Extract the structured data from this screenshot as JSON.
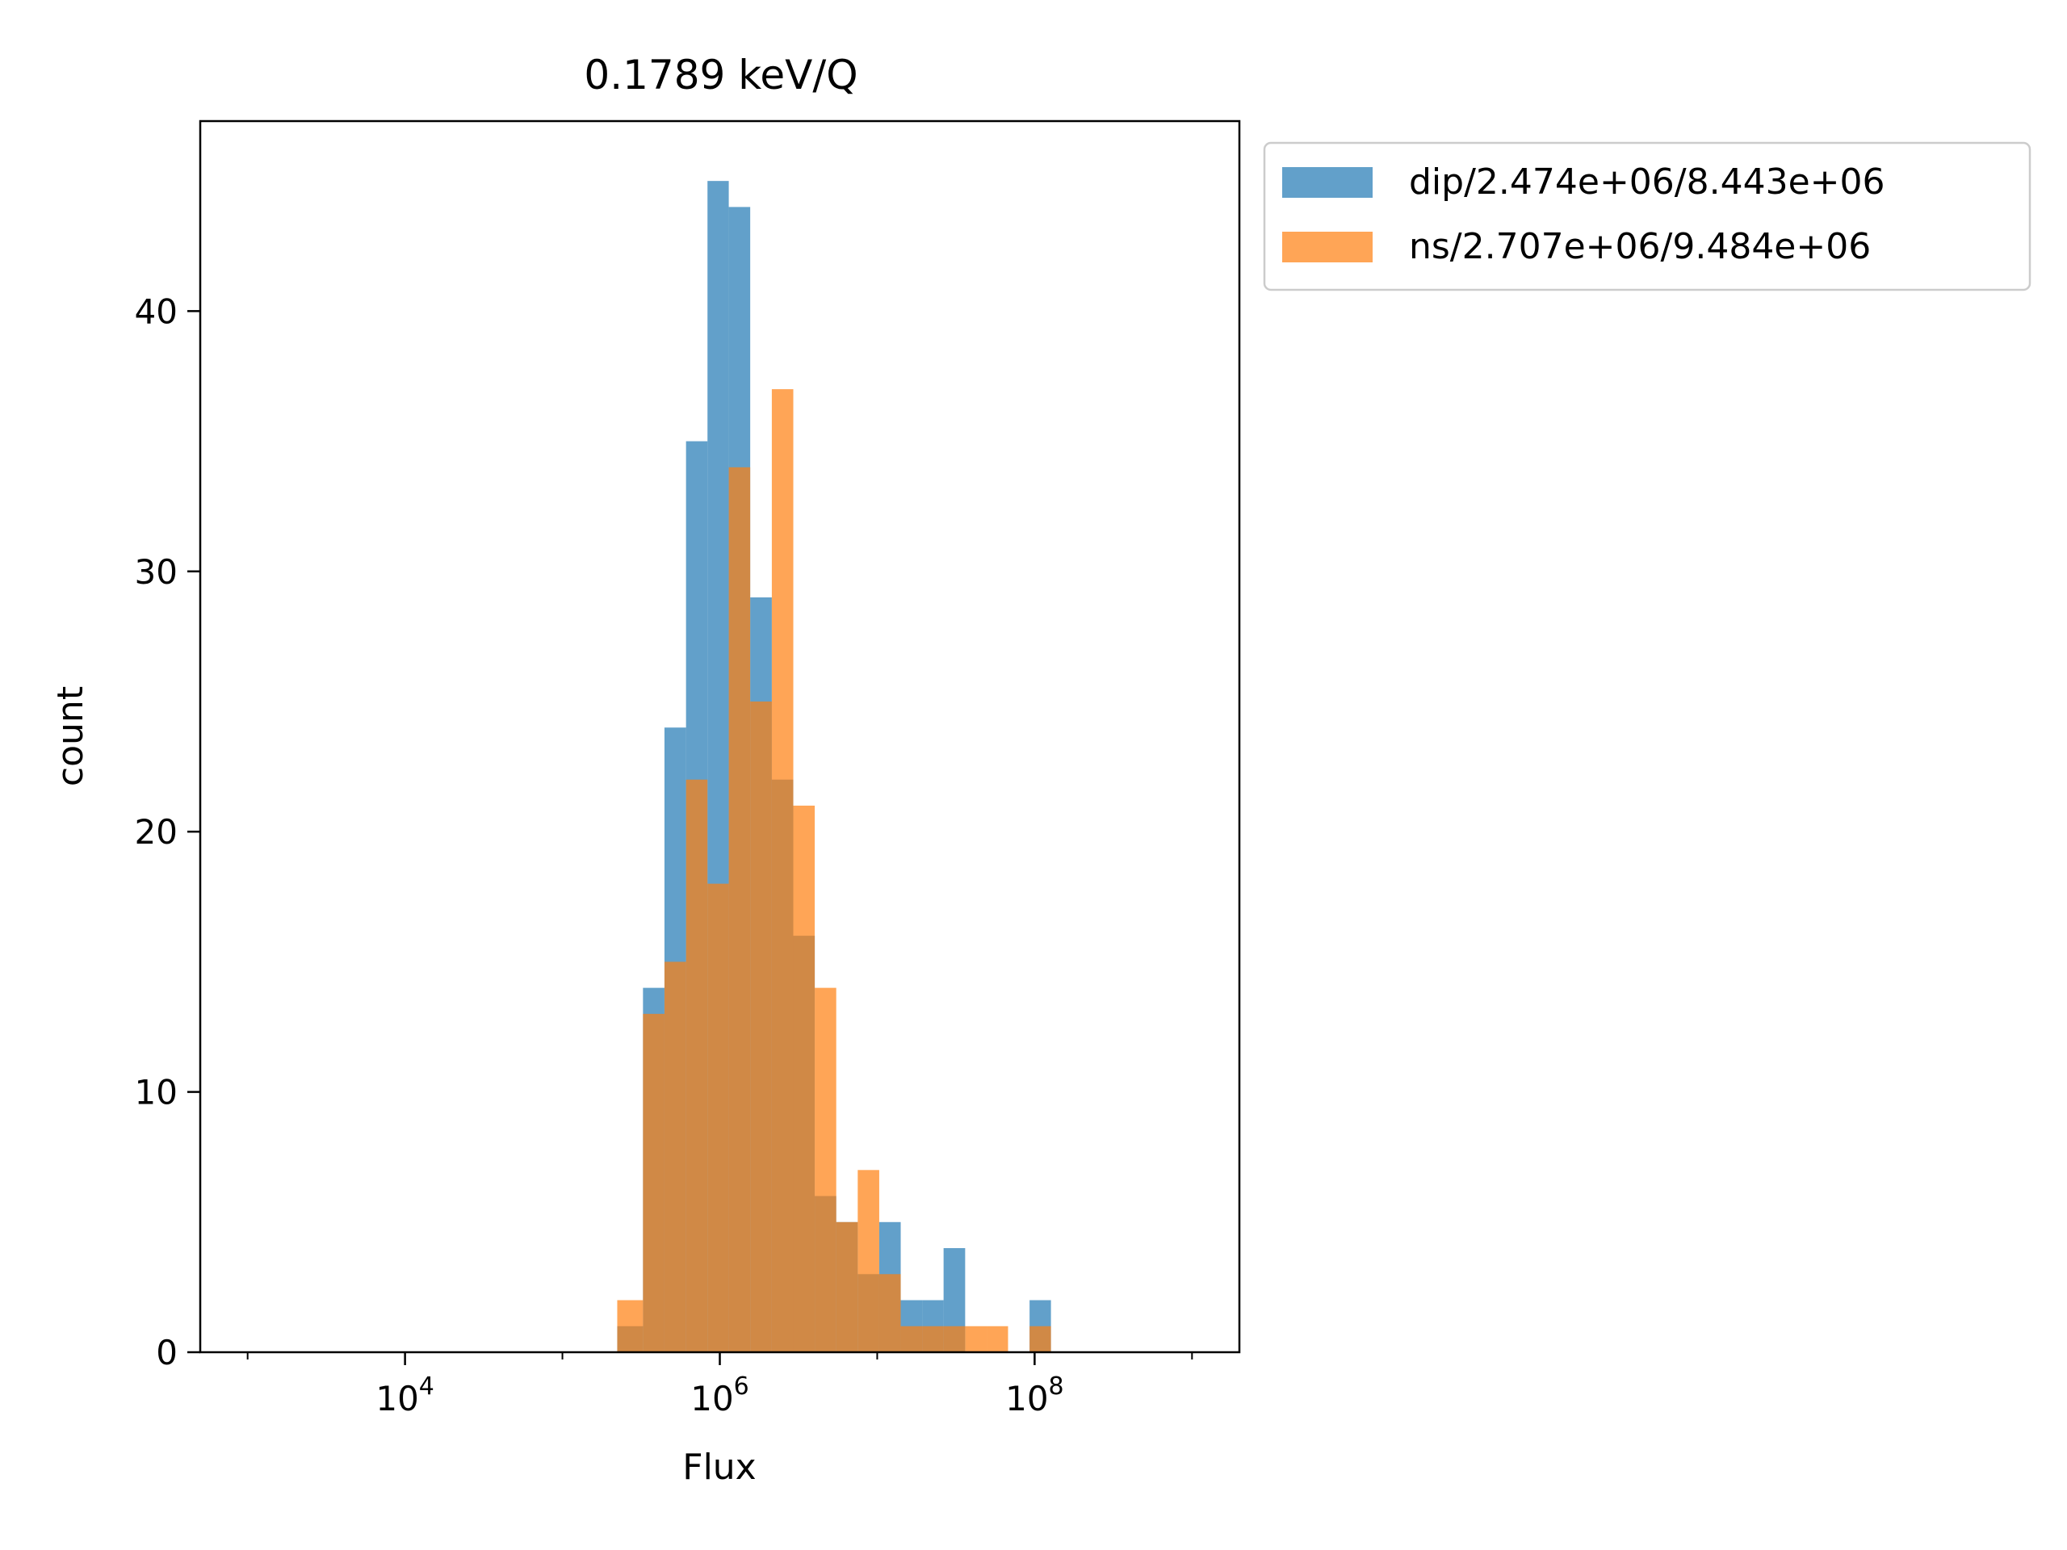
{
  "chart_data": {
    "type": "bar",
    "title": "0.1789 keV/Q",
    "xlabel": "Flux",
    "ylabel": "count",
    "x_scale": "log",
    "xlim": [
      500,
      2000000000
    ],
    "ylim": [
      0,
      47.3
    ],
    "x_tick_labels": [
      {
        "base": "10",
        "exp": "4",
        "value": 10000
      },
      {
        "base": "10",
        "exp": "6",
        "value": 1000000
      },
      {
        "base": "10",
        "exp": "8",
        "value": 100000000
      }
    ],
    "y_tick_labels": [
      {
        "label": "0",
        "value": 0
      },
      {
        "label": "10",
        "value": 10
      },
      {
        "label": "20",
        "value": 20
      },
      {
        "label": "30",
        "value": 30
      },
      {
        "label": "40",
        "value": 40
      }
    ],
    "legend_position": "outside-top-right",
    "grid": false,
    "series": [
      {
        "name": "dip/2.474e+06/8.443e+06",
        "color": "#1f77b4",
        "bins": [
          [
            223000,
            325000,
            1
          ],
          [
            325000,
            445000,
            14
          ],
          [
            445000,
            610000,
            24
          ],
          [
            610000,
            835000,
            35
          ],
          [
            835000,
            1140000,
            45
          ],
          [
            1140000,
            1560000,
            44
          ],
          [
            1560000,
            2140000,
            29
          ],
          [
            2140000,
            2930000,
            22
          ],
          [
            2930000,
            4010000,
            16
          ],
          [
            4010000,
            5490000,
            6
          ],
          [
            5490000,
            7520000,
            5
          ],
          [
            7520000,
            10300000,
            3
          ],
          [
            10300000,
            14100000,
            5
          ],
          [
            14100000,
            19300000,
            2
          ],
          [
            19300000,
            26400000,
            2
          ],
          [
            26400000,
            36200000,
            4
          ],
          [
            36200000,
            49600000,
            0
          ],
          [
            49600000,
            67800000,
            0
          ],
          [
            67800000,
            92900000,
            0
          ],
          [
            92900000,
            127000000,
            2
          ]
        ]
      },
      {
        "name": "ns/2.707e+06/9.484e+06",
        "color": "#ff7f0e",
        "bins": [
          [
            223000,
            325000,
            2
          ],
          [
            325000,
            445000,
            13
          ],
          [
            445000,
            610000,
            15
          ],
          [
            610000,
            835000,
            22
          ],
          [
            835000,
            1140000,
            18
          ],
          [
            1140000,
            1560000,
            34
          ],
          [
            1560000,
            2140000,
            25
          ],
          [
            2140000,
            2930000,
            37
          ],
          [
            2930000,
            4010000,
            21
          ],
          [
            4010000,
            5490000,
            14
          ],
          [
            5490000,
            7520000,
            5
          ],
          [
            7520000,
            10300000,
            7
          ],
          [
            10300000,
            14100000,
            3
          ],
          [
            14100000,
            19300000,
            1
          ],
          [
            19300000,
            26400000,
            1
          ],
          [
            26400000,
            36200000,
            1
          ],
          [
            36200000,
            49600000,
            1
          ],
          [
            49600000,
            67800000,
            1
          ],
          [
            67800000,
            92900000,
            0
          ],
          [
            92900000,
            127000000,
            1
          ]
        ]
      }
    ]
  }
}
